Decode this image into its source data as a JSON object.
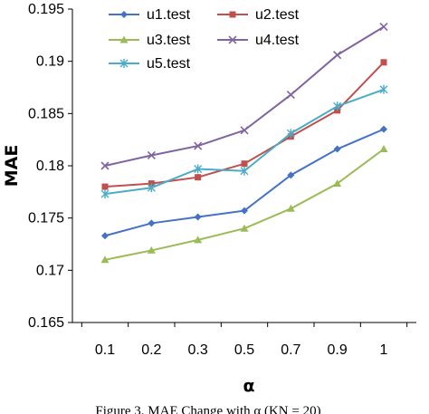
{
  "chart_data": {
    "type": "line",
    "title": "",
    "xlabel": "α",
    "ylabel": "MAE",
    "categories": [
      "0.1",
      "0.2",
      "0.3",
      "0.5",
      "0.7",
      "0.9",
      "1"
    ],
    "ylim": [
      0.165,
      0.195
    ],
    "yticks": [
      0.165,
      0.17,
      0.175,
      0.18,
      0.185,
      0.19,
      0.195
    ],
    "ytick_labels": [
      "0.165",
      "0.17",
      "0.175",
      "0.18",
      "0.185",
      "0.19",
      "0.195"
    ],
    "grid": false,
    "legend_position": "top-left",
    "series": [
      {
        "name": "u1.test",
        "color": "#4472C4",
        "marker": "diamond",
        "values": [
          0.1733,
          0.1745,
          0.1751,
          0.1757,
          0.1791,
          0.1816,
          0.1835
        ]
      },
      {
        "name": "u2.test",
        "color": "#C0504D",
        "marker": "square",
        "values": [
          0.178,
          0.1783,
          0.1789,
          0.1802,
          0.1828,
          0.1853,
          0.1899
        ]
      },
      {
        "name": "u3.test",
        "color": "#9BBB59",
        "marker": "triangle",
        "values": [
          0.171,
          0.1719,
          0.1729,
          0.174,
          0.1759,
          0.1783,
          0.1816
        ]
      },
      {
        "name": "u4.test",
        "color": "#8064A2",
        "marker": "x",
        "values": [
          0.18,
          0.181,
          0.1819,
          0.1834,
          0.1868,
          0.1906,
          0.1933
        ]
      },
      {
        "name": "u5.test",
        "color": "#4BACC6",
        "marker": "star",
        "values": [
          0.1773,
          0.1779,
          0.1797,
          0.1795,
          0.1831,
          0.1857,
          0.1873
        ]
      }
    ]
  },
  "caption": "Figure 3. MAE Change with α (KN = 20)"
}
